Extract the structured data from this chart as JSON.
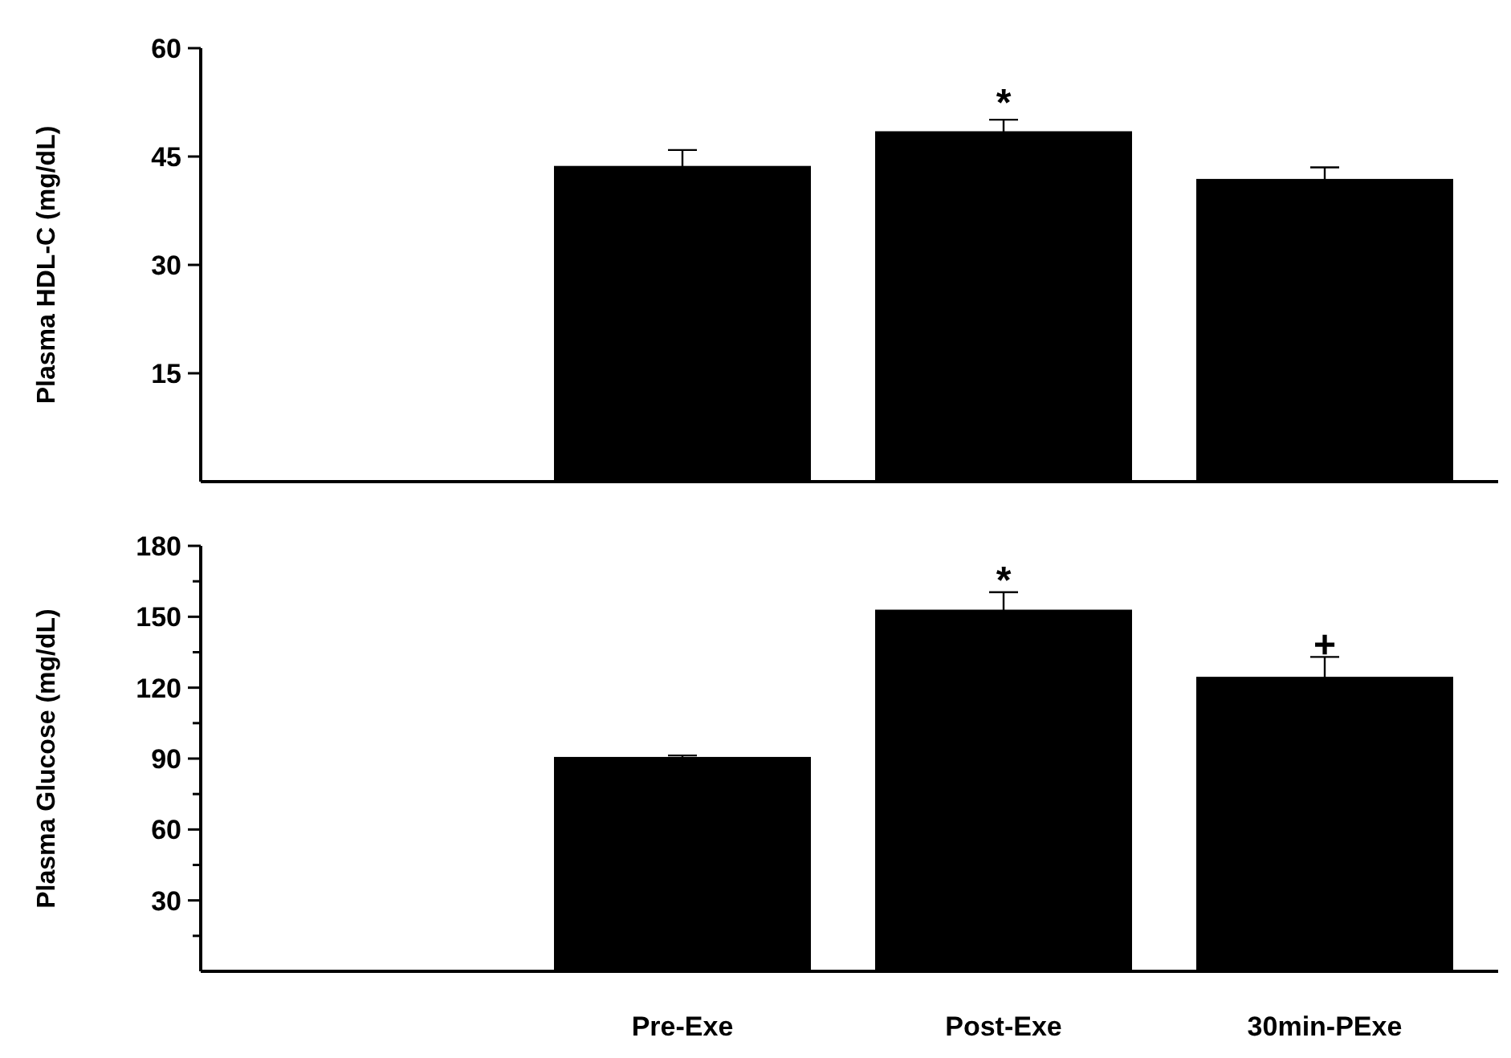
{
  "chart_data": [
    {
      "type": "bar",
      "ylabel": "Plasma HDL-C (mg/dL)",
      "categories": [
        null,
        null,
        null,
        null
      ],
      "series": [
        {
          "color": "#000000",
          "values": [
            null,
            43.7,
            48.5,
            41.9
          ],
          "errors": [
            null,
            2.2,
            1.6,
            1.6
          ]
        }
      ],
      "ylim": [
        0,
        60
      ],
      "yticks": [
        15,
        30,
        45,
        60
      ],
      "tick_labels": "y",
      "grid": false,
      "annotations": [
        "*"
      ]
    },
    {
      "type": "bar",
      "ylabel": "Plasma Glucose (mg/dL)",
      "categories": [
        null,
        "Pre-Exe",
        "Post-Exe",
        "30min-PExe"
      ],
      "series": [
        {
          "color": "#000000",
          "values": [
            null,
            90.7,
            153,
            124.6
          ],
          "errors": [
            null,
            0.6,
            7.4,
            8.4
          ]
        }
      ],
      "ylim": [
        0,
        180
      ],
      "yticks": [
        {
          "value": 15,
          "label": null
        },
        30,
        {
          "value": 45,
          "label": null
        },
        60,
        {
          "value": 75,
          "label": null
        },
        90,
        {
          "value": 105,
          "label": null
        },
        120,
        {
          "value": 135,
          "label": null
        },
        150,
        {
          "value": 165,
          "label": null
        },
        180
      ],
      "grid": false,
      "annotations": [
        "*",
        "+"
      ]
    }
  ]
}
